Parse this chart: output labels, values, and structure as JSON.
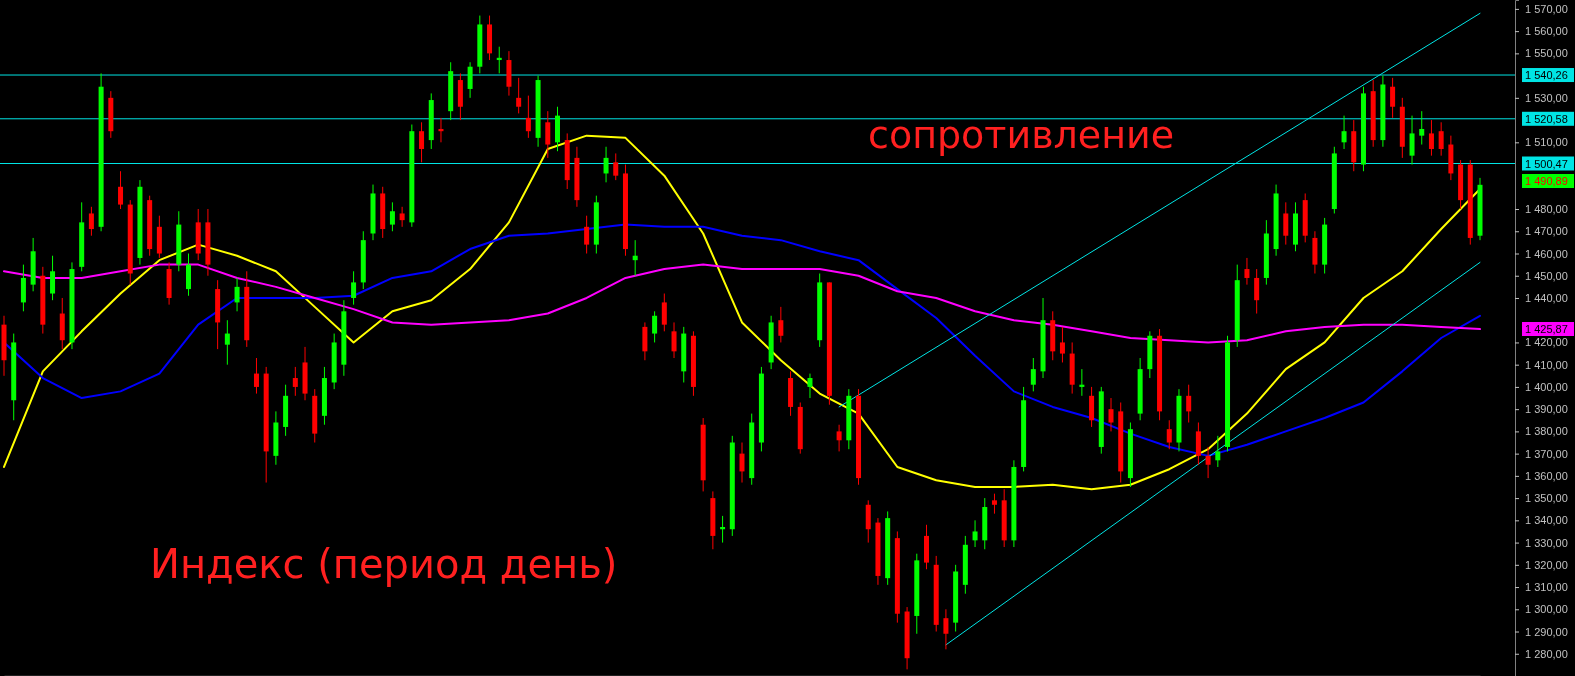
{
  "chart_data": {
    "type": "candlestick",
    "title": "Индекс (период день)",
    "annotations": [
      "сопротивление",
      "1 490,89",
      "1 425,87"
    ],
    "ylim": [
      1270,
      1574
    ],
    "yticks": [
      {
        "value": 1280,
        "label": "1 280,00"
      },
      {
        "value": 1290,
        "label": "1 290,00"
      },
      {
        "value": 1300,
        "label": "1 300,00"
      },
      {
        "value": 1310,
        "label": "1 310,00"
      },
      {
        "value": 1320,
        "label": "1 320,00"
      },
      {
        "value": 1330,
        "label": "1 330,00"
      },
      {
        "value": 1340,
        "label": "1 340,00"
      },
      {
        "value": 1350,
        "label": "1 350,00"
      },
      {
        "value": 1360,
        "label": "1 360,00"
      },
      {
        "value": 1370,
        "label": "1 370,00"
      },
      {
        "value": 1380,
        "label": "1 380,00"
      },
      {
        "value": 1390,
        "label": "1 390,00"
      },
      {
        "value": 1400,
        "label": "1 400,00"
      },
      {
        "value": 1410,
        "label": "1 410,00"
      },
      {
        "value": 1420,
        "label": "1 420,00"
      },
      {
        "value": 1440,
        "label": "1 440,00"
      },
      {
        "value": 1450,
        "label": "1 450,00"
      },
      {
        "value": 1460,
        "label": "1 460,00"
      },
      {
        "value": 1470,
        "label": "1 470,00"
      },
      {
        "value": 1480,
        "label": "1 480,00"
      },
      {
        "value": 1510,
        "label": "1 510,00"
      },
      {
        "value": 1530,
        "label": "1 530,00"
      },
      {
        "value": 1550,
        "label": "1 550,00"
      },
      {
        "value": 1560,
        "label": "1 560,00"
      },
      {
        "value": 1570,
        "label": "1 570,00"
      }
    ],
    "tick_labels": "y",
    "ref_lines": [
      {
        "axis": "y",
        "value": 1540.26,
        "label": "1 540,26",
        "color": "#00e5e5"
      },
      {
        "axis": "y",
        "value": 1520.58,
        "label": "1 520,58",
        "color": "#00e5e5"
      },
      {
        "axis": "y",
        "value": 1500.47,
        "label": "1 500,47",
        "color": "#00e5e5"
      }
    ],
    "categories": [
      null,
      null,
      null,
      null,
      null,
      null,
      null,
      null,
      null,
      null,
      null,
      null,
      null,
      null,
      null,
      null,
      null,
      null,
      null,
      null,
      null,
      null,
      null,
      null,
      null,
      null,
      null,
      null,
      null,
      null,
      null,
      null,
      null,
      null,
      null,
      null,
      null,
      null,
      null,
      null,
      null,
      null,
      null,
      null,
      null,
      null,
      null,
      null,
      null,
      null,
      null,
      null,
      null,
      null,
      null,
      null,
      null,
      null,
      null,
      null,
      null,
      null,
      null,
      null,
      null,
      null,
      null,
      null,
      null,
      null,
      null,
      null,
      null,
      null,
      null,
      null,
      null,
      null,
      null,
      null,
      null,
      null,
      null,
      null,
      null,
      null,
      null,
      null,
      null,
      null,
      null,
      null,
      null,
      null,
      null,
      null,
      null,
      null,
      null,
      null,
      null,
      null,
      null,
      null,
      null,
      null,
      null,
      null,
      null,
      null,
      null,
      null,
      null,
      null,
      null,
      null,
      null,
      null,
      null,
      null,
      null,
      null,
      null,
      null,
      null,
      null,
      null,
      null,
      null,
      null,
      null,
      null,
      null,
      null,
      null,
      null,
      null,
      null,
      null,
      null,
      null,
      null,
      null,
      null,
      null,
      null,
      null,
      null,
      null,
      null,
      null,
      null,
      null
    ],
    "ohlc": [
      [
        1428,
        1432,
        1405,
        1412
      ],
      [
        1394,
        1424,
        1385,
        1420
      ],
      [
        1438,
        1455,
        1434,
        1449
      ],
      [
        1446,
        1467,
        1443,
        1461
      ],
      [
        1450,
        1454,
        1424,
        1428
      ],
      [
        1442,
        1459,
        1439,
        1452
      ],
      [
        1433,
        1440,
        1417,
        1421
      ],
      [
        1420,
        1456,
        1417,
        1453
      ],
      [
        1454,
        1483,
        1452,
        1474
      ],
      [
        1478,
        1481,
        1468,
        1471
      ],
      [
        1472,
        1541,
        1470,
        1535
      ],
      [
        1530,
        1533,
        1512,
        1515
      ],
      [
        1490,
        1497,
        1480,
        1482
      ],
      [
        1482,
        1484,
        1446,
        1451
      ],
      [
        1458,
        1493,
        1455,
        1490
      ],
      [
        1484,
        1486,
        1459,
        1462
      ],
      [
        1472,
        1477,
        1458,
        1460
      ],
      [
        1453,
        1456,
        1437,
        1440
      ],
      [
        1455,
        1479,
        1452,
        1473
      ],
      [
        1444,
        1460,
        1441,
        1455
      ],
      [
        1474,
        1480,
        1457,
        1460
      ],
      [
        1474,
        1480,
        1450,
        1455
      ],
      [
        1444,
        1448,
        1417,
        1429
      ],
      [
        1419,
        1430,
        1410,
        1424
      ],
      [
        1438,
        1449,
        1434,
        1445
      ],
      [
        1445,
        1452,
        1418,
        1421
      ],
      [
        1406,
        1413,
        1397,
        1400
      ],
      [
        1406,
        1409,
        1357,
        1371
      ],
      [
        1369,
        1389,
        1365,
        1384
      ],
      [
        1382,
        1401,
        1378,
        1396
      ],
      [
        1404,
        1409,
        1396,
        1400
      ],
      [
        1411,
        1418,
        1394,
        1397
      ],
      [
        1396,
        1399,
        1375,
        1379
      ],
      [
        1387,
        1409,
        1383,
        1404
      ],
      [
        1402,
        1424,
        1399,
        1420
      ],
      [
        1410,
        1439,
        1405,
        1434
      ],
      [
        1440,
        1452,
        1437,
        1447
      ],
      [
        1447,
        1470,
        1444,
        1466
      ],
      [
        1469,
        1491,
        1466,
        1487
      ],
      [
        1487,
        1490,
        1467,
        1471
      ],
      [
        1473,
        1483,
        1470,
        1479
      ],
      [
        1478,
        1481,
        1472,
        1475
      ],
      [
        1474,
        1518,
        1472,
        1515
      ],
      [
        1515,
        1519,
        1501,
        1507
      ],
      [
        1511,
        1532,
        1507,
        1529
      ],
      [
        1516,
        1521,
        1510,
        1515
      ],
      [
        1524,
        1546,
        1520,
        1542
      ],
      [
        1538,
        1541,
        1520,
        1526
      ],
      [
        1534,
        1546,
        1530,
        1544
      ],
      [
        1544,
        1567,
        1541,
        1563
      ],
      [
        1563,
        1567,
        1547,
        1550
      ],
      [
        1547,
        1553,
        1541,
        1548
      ],
      [
        1547,
        1551,
        1531,
        1535
      ],
      [
        1530,
        1539,
        1523,
        1526
      ],
      [
        1521,
        1531,
        1512,
        1515
      ],
      [
        1512,
        1540,
        1508,
        1538
      ],
      [
        1519,
        1524,
        1503,
        1509
      ],
      [
        1510,
        1526,
        1506,
        1522
      ],
      [
        1511,
        1514,
        1489,
        1493
      ],
      [
        1503,
        1508,
        1481,
        1484
      ],
      [
        1472,
        1477,
        1460,
        1464
      ],
      [
        1464,
        1486,
        1460,
        1483
      ],
      [
        1496,
        1508,
        1492,
        1503
      ],
      [
        1501,
        1505,
        1493,
        1495
      ],
      [
        1496,
        1500,
        1459,
        1462
      ],
      [
        1457,
        1466,
        1450,
        1459
      ],
      [
        1427,
        1429,
        1412,
        1416
      ],
      [
        1424,
        1434,
        1420,
        1432
      ],
      [
        1438,
        1442,
        1425,
        1428
      ],
      [
        1425,
        1429,
        1413,
        1416
      ],
      [
        1407,
        1427,
        1402,
        1424
      ],
      [
        1423,
        1425,
        1396,
        1400
      ],
      [
        1383,
        1386,
        1353,
        1358
      ],
      [
        1350,
        1353,
        1327,
        1333
      ],
      [
        1336,
        1342,
        1330,
        1337
      ],
      [
        1336,
        1378,
        1333,
        1375
      ],
      [
        1370,
        1375,
        1357,
        1362
      ],
      [
        1359,
        1388,
        1356,
        1384
      ],
      [
        1375,
        1409,
        1371,
        1406
      ],
      [
        1411,
        1432,
        1408,
        1429
      ],
      [
        1430,
        1436,
        1420,
        1423
      ],
      [
        1404,
        1407,
        1387,
        1391
      ],
      [
        1391,
        1393,
        1370,
        1372
      ],
      [
        1400,
        1406,
        1395,
        1404
      ],
      [
        1421,
        1451,
        1418,
        1447
      ],
      [
        1447,
        1447,
        1392,
        1396
      ],
      [
        1380,
        1383,
        1371,
        1376
      ],
      [
        1376,
        1399,
        1372,
        1396
      ],
      [
        1396,
        1399,
        1356,
        1359
      ],
      [
        1347,
        1349,
        1330,
        1336
      ],
      [
        1339,
        1341,
        1311,
        1315
      ],
      [
        1314,
        1344,
        1311,
        1341
      ],
      [
        1332,
        1335,
        1294,
        1298
      ],
      [
        1299,
        1301,
        1273,
        1278
      ],
      [
        1297,
        1325,
        1289,
        1322
      ],
      [
        1333,
        1338,
        1318,
        1321
      ],
      [
        1320,
        1324,
        1290,
        1293
      ],
      [
        1296,
        1300,
        1282,
        1289
      ],
      [
        1294,
        1320,
        1290,
        1317
      ],
      [
        1311,
        1333,
        1307,
        1329
      ],
      [
        1331,
        1340,
        1328,
        1335
      ],
      [
        1331,
        1350,
        1327,
        1346
      ],
      [
        1349,
        1352,
        1343,
        1347
      ],
      [
        1349,
        1354,
        1328,
        1331
      ],
      [
        1331,
        1367,
        1328,
        1364
      ],
      [
        1364,
        1400,
        1362,
        1394
      ],
      [
        1401,
        1413,
        1398,
        1408
      ],
      [
        1407,
        1440,
        1404,
        1430
      ],
      [
        1430,
        1434,
        1412,
        1416
      ],
      [
        1420,
        1427,
        1411,
        1415
      ],
      [
        1415,
        1420,
        1397,
        1401
      ],
      [
        1400,
        1408,
        1396,
        1401
      ],
      [
        1396,
        1400,
        1382,
        1385
      ],
      [
        1373,
        1400,
        1370,
        1398
      ],
      [
        1390,
        1395,
        1380,
        1384
      ],
      [
        1389,
        1393,
        1357,
        1362
      ],
      [
        1359,
        1384,
        1355,
        1381
      ],
      [
        1388,
        1413,
        1385,
        1408
      ],
      [
        1408,
        1425,
        1404,
        1423
      ],
      [
        1423,
        1426,
        1385,
        1389
      ],
      [
        1381,
        1385,
        1372,
        1375
      ],
      [
        1375,
        1399,
        1371,
        1396
      ],
      [
        1396,
        1401,
        1384,
        1389
      ],
      [
        1380,
        1384,
        1365,
        1369
      ],
      [
        1369,
        1373,
        1359,
        1365
      ],
      [
        1367,
        1378,
        1364,
        1371
      ],
      [
        1373,
        1423,
        1371,
        1420
      ],
      [
        1421,
        1455,
        1418,
        1448
      ],
      [
        1453,
        1458,
        1446,
        1449
      ],
      [
        1449,
        1453,
        1433,
        1439
      ],
      [
        1449,
        1475,
        1446,
        1469
      ],
      [
        1462,
        1491,
        1459,
        1487
      ],
      [
        1478,
        1483,
        1464,
        1468
      ],
      [
        1464,
        1483,
        1461,
        1478
      ],
      [
        1484,
        1487,
        1465,
        1468
      ],
      [
        1467,
        1470,
        1451,
        1455
      ],
      [
        1455,
        1476,
        1451,
        1473
      ],
      [
        1480,
        1508,
        1478,
        1505
      ],
      [
        1510,
        1522,
        1507,
        1515
      ],
      [
        1515,
        1520,
        1497,
        1501
      ],
      [
        1500,
        1535,
        1497,
        1532
      ],
      [
        1533,
        1538,
        1508,
        1511
      ],
      [
        1511,
        1540,
        1508,
        1536
      ],
      [
        1535,
        1539,
        1521,
        1526
      ],
      [
        1526,
        1530,
        1503,
        1508
      ],
      [
        1504,
        1522,
        1500,
        1514
      ],
      [
        1513,
        1524,
        1509,
        1516
      ],
      [
        1514,
        1520,
        1504,
        1507
      ],
      [
        1515,
        1519,
        1504,
        1507
      ],
      [
        1509,
        1513,
        1493,
        1496
      ],
      [
        1500,
        1502,
        1480,
        1484
      ],
      [
        1500,
        1502,
        1464,
        1467
      ],
      [
        1468,
        1494,
        1466,
        1490.89
      ]
    ],
    "colors": [
      "#ff0000",
      "#00ff00",
      "#00ff00",
      "#00ff00",
      "#ff0000",
      "#00ff00",
      "#ff0000",
      "#00ff00",
      "#00ff00",
      "#ff0000",
      "#00ff00",
      "#ff0000",
      "#ff0000",
      "#ff0000",
      "#00ff00",
      "#ff0000",
      "#ff0000",
      "#ff0000",
      "#00ff00",
      "#00ff00",
      "#ff0000",
      "#ff0000",
      "#ff0000",
      "#00ff00",
      "#00ff00",
      "#ff0000",
      "#ff0000",
      "#ff0000",
      "#00ff00",
      "#00ff00",
      "#ff0000",
      "#ff0000",
      "#ff0000",
      "#00ff00",
      "#00ff00",
      "#00ff00",
      "#00ff00",
      "#00ff00",
      "#00ff00",
      "#ff0000",
      "#00ff00",
      "#ff0000",
      "#00ff00",
      "#ff0000",
      "#00ff00",
      "#ff0000",
      "#00ff00",
      "#ff0000",
      "#00ff00",
      "#00ff00",
      "#ff0000",
      "#00ff00",
      "#ff0000",
      "#ff0000",
      "#ff0000",
      "#00ff00",
      "#ff0000",
      "#00ff00",
      "#ff0000",
      "#ff0000",
      "#ff0000",
      "#00ff00",
      "#00ff00",
      "#ff0000",
      "#ff0000",
      "#00ff00",
      "#ff0000",
      "#00ff00",
      "#ff0000",
      "#ff0000",
      "#00ff00",
      "#ff0000",
      "#ff0000",
      "#ff0000",
      "#00ff00",
      "#00ff00",
      "#ff0000",
      "#00ff00",
      "#00ff00",
      "#00ff00",
      "#ff0000",
      "#ff0000",
      "#ff0000",
      "#00ff00",
      "#00ff00",
      "#ff0000",
      "#ff0000",
      "#00ff00",
      "#ff0000",
      "#ff0000",
      "#ff0000",
      "#00ff00",
      "#ff0000",
      "#ff0000",
      "#00ff00",
      "#ff0000",
      "#ff0000",
      "#ff0000",
      "#00ff00",
      "#00ff00",
      "#00ff00",
      "#00ff00",
      "#ff0000",
      "#ff0000",
      "#00ff00",
      "#00ff00",
      "#00ff00",
      "#00ff00",
      "#ff0000",
      "#ff0000",
      "#ff0000",
      "#00ff00",
      "#ff0000",
      "#00ff00",
      "#ff0000",
      "#ff0000",
      "#00ff00",
      "#00ff00",
      "#00ff00",
      "#ff0000",
      "#ff0000",
      "#00ff00",
      "#ff0000",
      "#ff0000",
      "#ff0000",
      "#00ff00",
      "#00ff00",
      "#00ff00",
      "#ff0000",
      "#ff0000",
      "#00ff00",
      "#00ff00",
      "#ff0000",
      "#00ff00",
      "#ff0000",
      "#ff0000",
      "#00ff00",
      "#00ff00",
      "#00ff00",
      "#ff0000",
      "#00ff00",
      "#ff0000",
      "#00ff00",
      "#ff0000",
      "#ff0000",
      "#00ff00",
      "#00ff00",
      "#ff0000",
      "#ff0000",
      "#ff0000",
      "#ff0000",
      "#ff0000",
      "#00ff00"
    ],
    "series": [
      {
        "type": "line",
        "color": "#ffff00",
        "values": [
          1364,
          null,
          null,
          null,
          1407,
          null,
          null,
          null,
          1425,
          null,
          null,
          null,
          1442,
          null,
          null,
          null,
          1457,
          null,
          null,
          null,
          1464,
          null,
          null,
          null,
          1459,
          null,
          null,
          null,
          1452,
          null,
          null,
          null,
          1436,
          null,
          null,
          null,
          1420,
          null,
          null,
          null,
          1434,
          null,
          null,
          null,
          1439,
          null,
          null,
          null,
          1453,
          null,
          null,
          null,
          1474,
          null,
          null,
          null,
          1507,
          null,
          null,
          null,
          1513,
          null,
          null,
          null,
          1512,
          null,
          null,
          null,
          1495,
          null,
          null,
          null,
          1469,
          null,
          null,
          null,
          1429,
          null,
          null,
          null,
          1412,
          null,
          null,
          null,
          1397,
          null,
          null,
          null,
          1388,
          null,
          null,
          null,
          1364,
          null,
          null,
          null,
          1358,
          null,
          null,
          null,
          1355,
          null,
          null,
          null,
          1355,
          null,
          null,
          null,
          1356,
          null,
          null,
          null,
          1354,
          null,
          null,
          null,
          1356,
          null,
          null,
          null,
          1363,
          null,
          null,
          null,
          1372,
          null,
          null,
          null,
          1388,
          null,
          null,
          null,
          1408,
          null,
          null,
          null,
          1420,
          null,
          null,
          null,
          1440,
          null,
          null,
          null,
          1452,
          null,
          null,
          null,
          1471,
          null,
          null,
          null,
          1489
        ]
      },
      {
        "type": "line",
        "color": "#0000ff",
        "values": [
          1420,
          null,
          null,
          null,
          1404,
          null,
          null,
          null,
          1395,
          null,
          null,
          null,
          1398,
          null,
          null,
          null,
          1406,
          null,
          null,
          null,
          1428,
          null,
          null,
          null,
          1440,
          null,
          null,
          null,
          1440,
          null,
          null,
          null,
          1440,
          null,
          null,
          null,
          1441,
          null,
          null,
          null,
          1449,
          null,
          null,
          null,
          1452,
          null,
          null,
          null,
          1462,
          null,
          null,
          null,
          1468,
          null,
          null,
          null,
          1469,
          null,
          null,
          null,
          1471,
          null,
          null,
          null,
          1473,
          null,
          null,
          null,
          1472,
          null,
          null,
          null,
          1472,
          null,
          null,
          null,
          1468,
          null,
          null,
          null,
          1466,
          null,
          null,
          null,
          1461,
          null,
          null,
          null,
          1457,
          null,
          null,
          null,
          1444,
          null,
          null,
          null,
          1431,
          null,
          null,
          null,
          1414,
          null,
          null,
          null,
          1398,
          null,
          null,
          null,
          1391,
          null,
          null,
          null,
          1386,
          null,
          null,
          null,
          1379,
          null,
          null,
          null,
          1373,
          null,
          null,
          null,
          1369,
          null,
          null,
          null,
          1374,
          null,
          null,
          null,
          1380,
          null,
          null,
          null,
          1386,
          null,
          null,
          null,
          1393,
          null,
          null,
          null,
          1407,
          null,
          null,
          null,
          1422,
          null,
          null,
          null,
          1432
        ]
      },
      {
        "type": "line",
        "color": "#ff00ff",
        "values": [
          1452,
          null,
          null,
          null,
          1449,
          null,
          null,
          null,
          1449,
          null,
          null,
          null,
          1452,
          null,
          null,
          null,
          1455,
          null,
          null,
          null,
          1455,
          null,
          null,
          null,
          1449,
          null,
          null,
          null,
          1445,
          null,
          null,
          null,
          1440,
          null,
          null,
          null,
          1435,
          null,
          null,
          null,
          1429,
          null,
          null,
          null,
          1428,
          null,
          null,
          null,
          1429,
          null,
          null,
          null,
          1430,
          null,
          null,
          null,
          1433,
          null,
          null,
          null,
          1440,
          null,
          null,
          null,
          1449,
          null,
          null,
          null,
          1453,
          null,
          null,
          null,
          1455,
          null,
          null,
          null,
          1453,
          null,
          null,
          null,
          1453,
          null,
          null,
          null,
          1453,
          null,
          null,
          null,
          1450,
          null,
          null,
          null,
          1443,
          null,
          null,
          null,
          1440,
          null,
          null,
          null,
          1434,
          null,
          null,
          null,
          1430,
          null,
          null,
          null,
          1428,
          null,
          null,
          null,
          1425,
          null,
          null,
          null,
          1422,
          null,
          null,
          null,
          1421,
          null,
          null,
          null,
          1420,
          null,
          null,
          null,
          1421,
          null,
          null,
          null,
          1425,
          null,
          null,
          null,
          1427,
          null,
          null,
          null,
          1428,
          null,
          null,
          null,
          1428,
          null,
          null,
          null,
          1427,
          null,
          null,
          null,
          1426
        ]
      },
      {
        "type": "line",
        "color": "#00e5e5",
        "values": [
          null,
          null,
          null,
          null,
          null,
          null,
          null,
          null,
          null,
          null,
          null,
          null,
          null,
          null,
          null,
          null,
          null,
          null,
          null,
          null,
          null,
          null,
          null,
          null,
          null,
          null,
          null,
          null,
          null,
          null,
          null,
          null,
          null,
          null,
          null,
          null,
          null,
          null,
          null,
          null,
          null,
          null,
          null,
          null,
          null,
          null,
          null,
          null,
          null,
          null,
          null,
          null,
          null,
          null,
          null,
          null,
          null,
          null,
          null,
          null,
          null,
          null,
          null,
          null,
          null,
          null,
          null,
          null,
          null,
          null,
          null,
          null,
          null,
          null,
          null,
          null,
          null,
          null,
          null,
          null,
          null,
          null,
          null,
          null,
          null,
          null,
          1391,
          null,
          null,
          null,
          null,
          null,
          null,
          null,
          null,
          null,
          null,
          null,
          null,
          null,
          null,
          null,
          null,
          null,
          null,
          null,
          null,
          null,
          null,
          null,
          null,
          null,
          null,
          null,
          null,
          null,
          null,
          null,
          null,
          null,
          null,
          null,
          null,
          null,
          null,
          null,
          null,
          null,
          null,
          null,
          null,
          null,
          null,
          null,
          null,
          null,
          null,
          null,
          null,
          null,
          null,
          null,
          null,
          null,
          null,
          null,
          null,
          null,
          null,
          null,
          null,
          null,
          1568
        ]
      },
      {
        "type": "line",
        "color": "#00e5e5",
        "values": [
          null,
          null,
          null,
          null,
          null,
          null,
          null,
          null,
          null,
          null,
          null,
          null,
          null,
          null,
          null,
          null,
          null,
          null,
          null,
          null,
          null,
          null,
          null,
          null,
          null,
          null,
          null,
          null,
          null,
          null,
          null,
          null,
          null,
          null,
          null,
          null,
          null,
          null,
          null,
          null,
          null,
          null,
          null,
          null,
          null,
          null,
          null,
          null,
          null,
          null,
          null,
          null,
          null,
          null,
          null,
          null,
          null,
          null,
          null,
          null,
          null,
          null,
          null,
          null,
          null,
          null,
          null,
          null,
          null,
          null,
          null,
          null,
          null,
          null,
          null,
          null,
          null,
          null,
          null,
          null,
          null,
          null,
          null,
          null,
          null,
          null,
          null,
          null,
          null,
          null,
          null,
          null,
          null,
          null,
          null,
          null,
          null,
          1284,
          null,
          null,
          null,
          null,
          null,
          null,
          null,
          null,
          null,
          null,
          null,
          null,
          null,
          null,
          null,
          null,
          null,
          null,
          null,
          null,
          null,
          null,
          null,
          null,
          null,
          null,
          null,
          null,
          null,
          null,
          null,
          null,
          null,
          null,
          null,
          null,
          null,
          null,
          null,
          null,
          null,
          null,
          null,
          null,
          null,
          null,
          null,
          null,
          null,
          null,
          null,
          null,
          null,
          null,
          1456
        ]
      }
    ]
  }
}
